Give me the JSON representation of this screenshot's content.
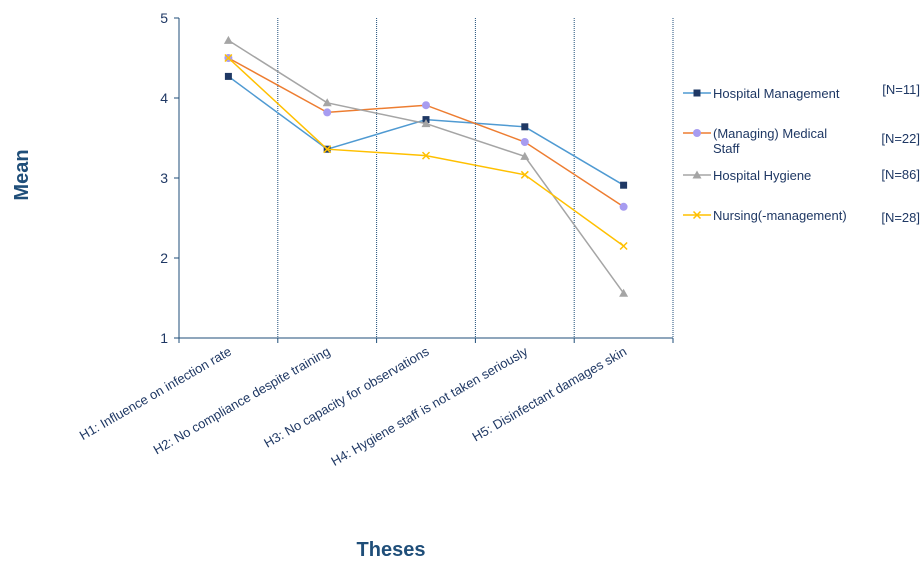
{
  "chart_data": {
    "type": "line",
    "categories": [
      "H1: Influence on infection rate",
      "H2: No compliance despite training",
      "H3: No capacity for observations",
      "H4: Hygiene staff is not taken seriously",
      "H5: Disinfectant damages skin"
    ],
    "series": [
      {
        "name": "Hospital Management",
        "n": "[N=11]",
        "color": "#4f9ad2",
        "marker": "square",
        "marker_color": "#1f3864",
        "values": [
          4.27,
          3.36,
          3.73,
          3.64,
          2.91
        ]
      },
      {
        "name": "(Managing) Medical Staff",
        "n": "[N=22]",
        "color": "#ed7d31",
        "marker": "circle",
        "marker_color": "#a79cf0",
        "values": [
          4.5,
          3.82,
          3.91,
          3.45,
          2.64
        ]
      },
      {
        "name": "Hospital Hygiene",
        "n": "[N=86]",
        "color": "#a5a5a5",
        "marker": "triangle",
        "marker_color": "#a5a5a5",
        "values": [
          4.72,
          3.94,
          3.68,
          3.27,
          1.56
        ]
      },
      {
        "name": "Nursing(-management)",
        "n": "[N=28]",
        "color": "#ffc000",
        "marker": "x",
        "marker_color": "#ffc000",
        "values": [
          4.5,
          3.36,
          3.28,
          3.04,
          2.15
        ]
      }
    ],
    "xlabel": "Theses",
    "ylabel": "Mean",
    "ylim": [
      1,
      5
    ],
    "yticks": [
      "1",
      "2",
      "3",
      "4",
      "5"
    ],
    "vertical_grid": true,
    "legend_position": "right"
  }
}
